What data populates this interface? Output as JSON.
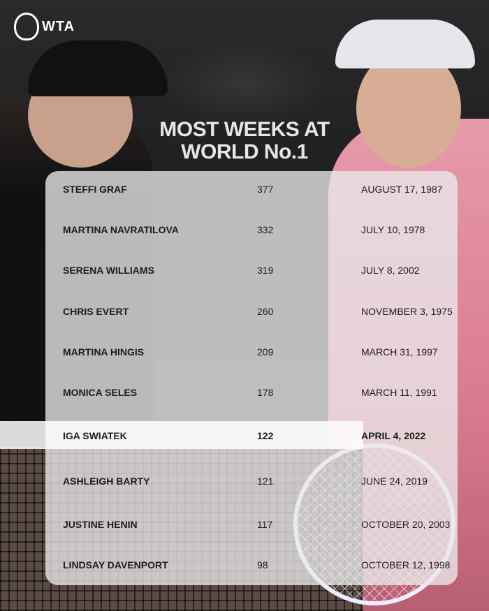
{
  "brand": {
    "logo_text": "WTA"
  },
  "title": {
    "line1": "MOST WEEKS AT",
    "line2": "WORLD No.1"
  },
  "highlight_player": "IGA SWIATEK",
  "rows": [
    {
      "name": "STEFFI GRAF",
      "weeks": "377",
      "date": "AUGUST 17, 1987"
    },
    {
      "name": "MARTINA NAVRATILOVA",
      "weeks": "332",
      "date": "JULY 10, 1978"
    },
    {
      "name": "SERENA WILLIAMS",
      "weeks": "319",
      "date": "JULY 8, 2002"
    },
    {
      "name": "CHRIS EVERT",
      "weeks": "260",
      "date": "NOVEMBER 3, 1975"
    },
    {
      "name": "MARTINA HINGIS",
      "weeks": "209",
      "date": "MARCH 31, 1997"
    },
    {
      "name": "MONICA SELES",
      "weeks": "178",
      "date": "MARCH 11, 1991"
    },
    {
      "name": "IGA SWIATEK",
      "weeks": "122",
      "date": "APRIL 4, 2022"
    },
    {
      "name": "ASHLEIGH BARTY",
      "weeks": "121",
      "date": "JUNE 24, 2019"
    },
    {
      "name": "JUSTINE HENIN",
      "weeks": "117",
      "date": "OCTOBER 20, 2003"
    },
    {
      "name": "LINDSAY DAVENPORT",
      "weeks": "98",
      "date": "OCTOBER 12, 1998"
    }
  ]
}
